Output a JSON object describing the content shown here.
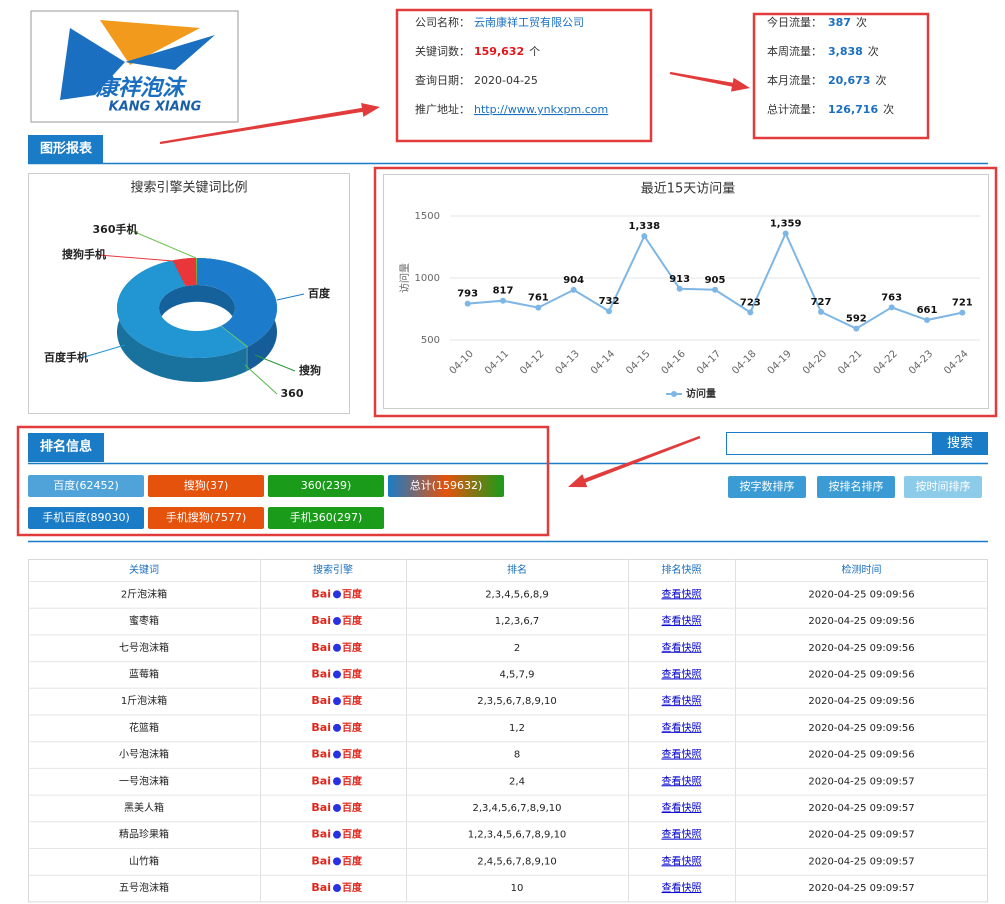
{
  "logo": {
    "cn": "康祥泡沫",
    "en": "KANG XIANG"
  },
  "company": [
    {
      "label": "公司名称：",
      "value": "云南康祥工贸有限公司"
    },
    {
      "label": "关键词数：",
      "value": "159,632",
      "unit": "个"
    },
    {
      "label": "查询日期：",
      "value": "2020-04-25"
    },
    {
      "label": "推广地址：",
      "value": "http://www.ynkxpm.com"
    }
  ],
  "traffic": [
    {
      "label": "今日流量：",
      "value": "387",
      "unit": "次"
    },
    {
      "label": "本周流量：",
      "value": "3,838",
      "unit": "次"
    },
    {
      "label": "本月流量：",
      "value": "20,673",
      "unit": "次"
    },
    {
      "label": "总计流量：",
      "value": "126,716",
      "unit": "次"
    }
  ],
  "sections": {
    "charts": "图形报表",
    "ranking": "排名信息"
  },
  "ranking_buttons": [
    "百度(62452)",
    "搜狗(37)",
    "360(239)",
    "总计(159632)",
    "手机百度(89030)",
    "手机搜狗(7577)",
    "手机360(297)"
  ],
  "search": {
    "button": "搜索"
  },
  "sort_buttons": [
    "按字数排序",
    "按排名排序",
    "按时间排序"
  ],
  "table": {
    "headers": [
      "关键词",
      "搜索引擎",
      "排名",
      "排名快照",
      "检测时间"
    ],
    "rows": [
      [
        "2斤泡沫箱",
        {
          "logo": "Bai",
          "name": "百度"
        },
        "2,3,4,5,6,8,9",
        "查看快照",
        "2020-04-25 09:09:56"
      ],
      [
        "蜜枣箱",
        {
          "logo": "Bai",
          "name": "百度"
        },
        "1,2,3,6,7",
        "查看快照",
        "2020-04-25 09:09:56"
      ],
      [
        "七号泡沫箱",
        {
          "logo": "Bai",
          "name": "百度"
        },
        "2",
        "查看快照",
        "2020-04-25 09:09:56"
      ],
      [
        "蓝莓箱",
        {
          "logo": "Bai",
          "name": "百度"
        },
        "4,5,7,9",
        "查看快照",
        "2020-04-25 09:09:56"
      ],
      [
        "1斤泡沫箱",
        {
          "logo": "Bai",
          "name": "百度"
        },
        "2,3,5,6,7,8,9,10",
        "查看快照",
        "2020-04-25 09:09:56"
      ],
      [
        "花篮箱",
        {
          "logo": "Bai",
          "name": "百度"
        },
        "1,2",
        "查看快照",
        "2020-04-25 09:09:56"
      ],
      [
        "小号泡沫箱",
        {
          "logo": "Bai",
          "name": "百度"
        },
        "8",
        "查看快照",
        "2020-04-25 09:09:56"
      ],
      [
        "一号泡沫箱",
        {
          "logo": "Bai",
          "name": "百度"
        },
        "2,4",
        "查看快照",
        "2020-04-25 09:09:57"
      ],
      [
        "黑美人箱",
        {
          "logo": "Bai",
          "name": "百度"
        },
        "2,3,4,5,6,7,8,9,10",
        "查看快照",
        "2020-04-25 09:09:57"
      ],
      [
        "精品珍果箱",
        {
          "logo": "Bai",
          "name": "百度"
        },
        "1,2,3,4,5,6,7,8,9,10",
        "查看快照",
        "2020-04-25 09:09:57"
      ],
      [
        "山竹箱",
        {
          "logo": "Bai",
          "name": "百度"
        },
        "2,4,5,6,7,8,9,10",
        "查看快照",
        "2020-04-25 09:09:57"
      ],
      [
        "五号泡沫箱",
        {
          "logo": "Bai",
          "name": "百度"
        },
        "10",
        "查看快照",
        "2020-04-25 09:09:57"
      ]
    ]
  },
  "chart_data": [
    {
      "type": "pie",
      "title": "搜索引擎关键词比例",
      "donut": true,
      "categories": [
        "百度",
        "搜狗",
        "360",
        "百度手机",
        "搜狗手机",
        "360手机"
      ],
      "values": [
        39,
        0.1,
        0.2,
        55.8,
        4.7,
        0.2
      ],
      "colors": [
        "#1c7ccb",
        "#2a9a3a",
        "#54b848",
        "#2196d3",
        "#e8363a",
        "#6ac04a"
      ]
    },
    {
      "type": "line",
      "title": "最近15天访问量",
      "y_label": "访问量",
      "categories": [
        "04-10",
        "04-11",
        "04-12",
        "04-13",
        "04-14",
        "04-15",
        "04-16",
        "04-17",
        "04-18",
        "04-19",
        "04-20",
        "04-21",
        "04-22",
        "04-23",
        "04-24"
      ],
      "series": [
        {
          "name": "访问量",
          "color": "#7eb6e6",
          "values": [
            793,
            817,
            761,
            904,
            732,
            1338,
            913,
            905,
            723,
            1359,
            727,
            592,
            763,
            661,
            721
          ],
          "value_labels": [
            "793",
            "817",
            "761",
            "904",
            "732",
            "1,338",
            "913",
            "905",
            "723",
            "1,359",
            "727",
            "592",
            "763",
            "661",
            "721"
          ]
        }
      ],
      "ylim": [
        500,
        1500
      ],
      "yticks": [
        500,
        1000,
        1500
      ],
      "grid": true
    }
  ]
}
